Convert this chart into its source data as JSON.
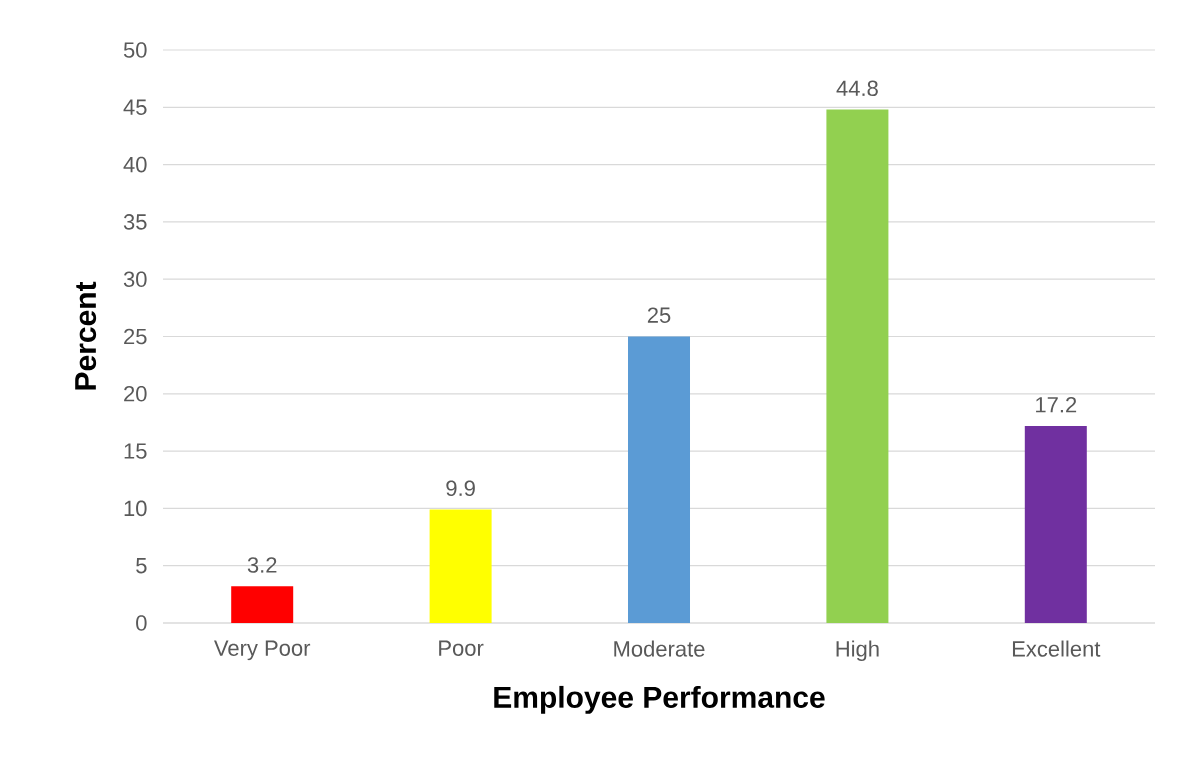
{
  "chart_data": {
    "type": "bar",
    "xlabel": "Employee Performance",
    "ylabel": "Percent",
    "categories": [
      "Very Poor",
      "Poor",
      "Moderate",
      "High",
      "Excellent"
    ],
    "values": [
      3.2,
      9.9,
      25,
      44.8,
      17.2
    ],
    "colors": [
      "#ff0000",
      "#ffff00",
      "#5b9bd5",
      "#92d050",
      "#7030a0"
    ],
    "ylim": [
      0,
      50
    ],
    "yticks": [
      0,
      5,
      10,
      15,
      20,
      25,
      30,
      35,
      40,
      45,
      50
    ],
    "grid": "y",
    "data_labels": true
  }
}
